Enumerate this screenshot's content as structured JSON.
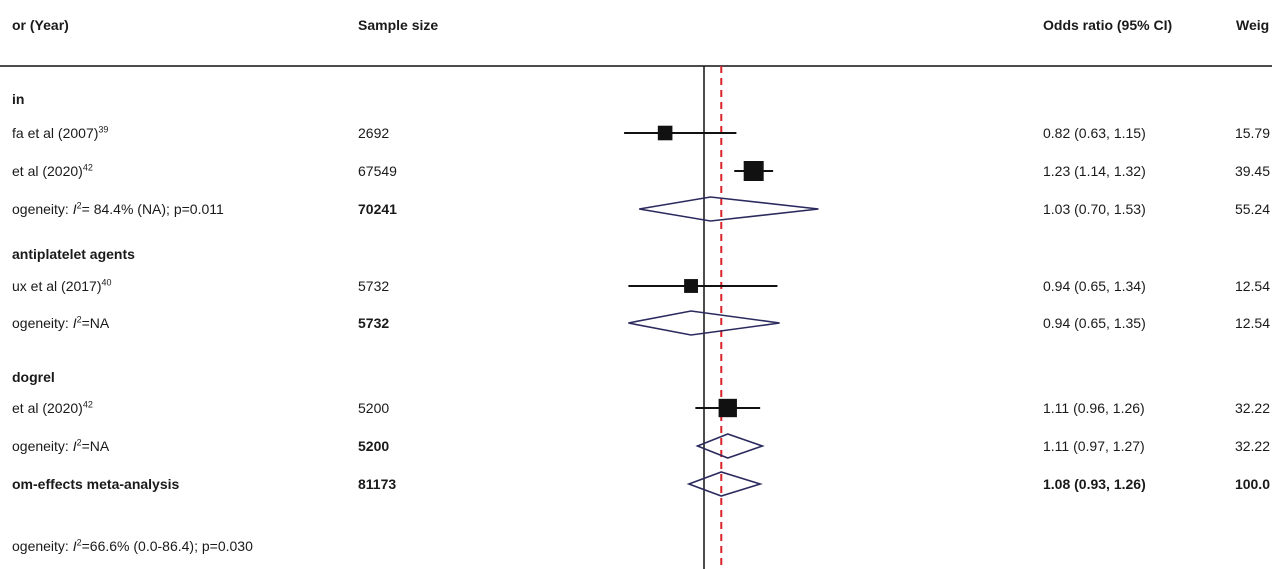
{
  "headers": {
    "study": "or (Year)",
    "sample": "Sample size",
    "or": "Odds ratio (95% CI)",
    "weight": "Weig"
  },
  "heterogeneity_overall": {
    "prefix": "ogeneity: ",
    "stat": "I",
    "sup": "2",
    "rest": "=66.6% (0.0-86.4); p=0.030"
  },
  "chart_data": {
    "type": "forest",
    "null_line": 1.0,
    "pooled_line": 1.08,
    "rows": [
      {
        "kind": "group",
        "label": "in"
      },
      {
        "kind": "study",
        "label": "fa et al (2007)",
        "ref": "39",
        "n": "2692",
        "or": 0.82,
        "lo": 0.63,
        "hi": 1.15,
        "ci_text": "0.82 (0.63, 1.15)",
        "weight": "15.79"
      },
      {
        "kind": "study",
        "label": "et al (2020)",
        "ref": "42",
        "n": "67549",
        "or": 1.23,
        "lo": 1.14,
        "hi": 1.32,
        "ci_text": "1.23 (1.14, 1.32)",
        "weight": "39.45"
      },
      {
        "kind": "subtotal",
        "label_prefix": "ogeneity: ",
        "stat": "I",
        "sup": "2",
        "label_rest": "= 84.4% (NA); p=0.011",
        "n": "70241",
        "or": 1.03,
        "lo": 0.7,
        "hi": 1.53,
        "ci_text": "1.03 (0.70, 1.53)",
        "weight": "55.24"
      },
      {
        "kind": "group",
        "label": "antiplatelet agents"
      },
      {
        "kind": "study",
        "label": "ux et al (2017)",
        "ref": "40",
        "n": "5732",
        "or": 0.94,
        "lo": 0.65,
        "hi": 1.34,
        "ci_text": "0.94 (0.65, 1.34)",
        "weight": "12.54"
      },
      {
        "kind": "subtotal",
        "label_prefix": "ogeneity: ",
        "stat": "I",
        "sup": "2",
        "label_rest": "=NA",
        "n": "5732",
        "or": 0.94,
        "lo": 0.65,
        "hi": 1.35,
        "ci_text": "0.94 (0.65, 1.35)",
        "weight": "12.54"
      },
      {
        "kind": "group",
        "label": "dogrel"
      },
      {
        "kind": "study",
        "label": "et al (2020)",
        "ref": "42",
        "n": "5200",
        "or": 1.11,
        "lo": 0.96,
        "hi": 1.26,
        "ci_text": "1.11 (0.96, 1.26)",
        "weight": "32.22"
      },
      {
        "kind": "subtotal",
        "label_prefix": "ogeneity: ",
        "stat": "I",
        "sup": "2",
        "label_rest": "=NA",
        "n": "5200",
        "or": 1.11,
        "lo": 0.97,
        "hi": 1.27,
        "ci_text": "1.11 (0.97, 1.27)",
        "weight": "32.22"
      },
      {
        "kind": "overall",
        "label": "om-effects meta-analysis",
        "n": "81173",
        "or": 1.08,
        "lo": 0.93,
        "hi": 1.26,
        "ci_text": "1.08 (0.93, 1.26)",
        "weight": "100.0"
      }
    ],
    "colors": {
      "marker": "#111111",
      "diamond": "#2b2a5e",
      "pooled_line": "#d9222a"
    }
  }
}
